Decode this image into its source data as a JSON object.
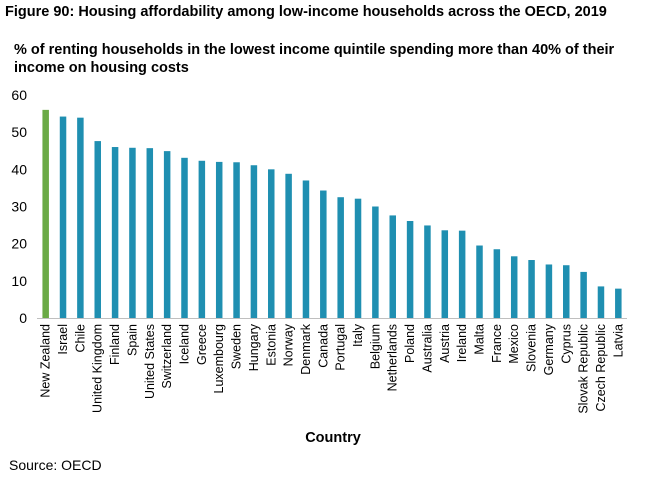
{
  "figure": {
    "title": "Figure 90: Housing affordability among low-income households across the OECD, 2019",
    "subtitle": "% of renting households in the lowest income quintile spending more than 40% of their income on housing costs",
    "source": "Source: OECD"
  },
  "colors": {
    "highlight": "#6aaa46",
    "bar": "#1f8fb1",
    "axis": "#bfbfbf"
  },
  "chart_data": {
    "type": "bar",
    "title": "% of renting households in the lowest income quintile spending more than 40% of their income on housing costs",
    "xlabel": "Country",
    "ylabel": "",
    "ylim": [
      0,
      60
    ],
    "yticks": [
      0,
      10,
      20,
      30,
      40,
      50,
      60
    ],
    "grid": false,
    "categories": [
      "New Zealand",
      "Israel",
      "Chile",
      "United Kingdom",
      "Finland",
      "Spain",
      "United States",
      "Switzerland",
      "Iceland",
      "Greece",
      "Luxembourg",
      "Sweden",
      "Hungary",
      "Estonia",
      "Norway",
      "Denmark",
      "Canada",
      "Portugal",
      "Italy",
      "Belgium",
      "Netherlands",
      "Poland",
      "Australia",
      "Austria",
      "Ireland",
      "Malta",
      "France",
      "Mexico",
      "Slovenia",
      "Germany",
      "Cyprus",
      "Slovak Republic",
      "Czech Republic",
      "Latvia"
    ],
    "values": [
      56,
      54.2,
      53.9,
      47.6,
      46,
      45.8,
      45.7,
      44.9,
      43.1,
      42.3,
      42,
      41.9,
      41.1,
      40,
      38.8,
      37,
      34.3,
      32.5,
      32.1,
      30,
      27.6,
      26.1,
      24.9,
      23.6,
      23.5,
      19.5,
      18.5,
      16.6,
      15.6,
      14.4,
      14.2,
      12.4,
      8.5,
      7.9
    ],
    "highlight_category": "New Zealand"
  }
}
